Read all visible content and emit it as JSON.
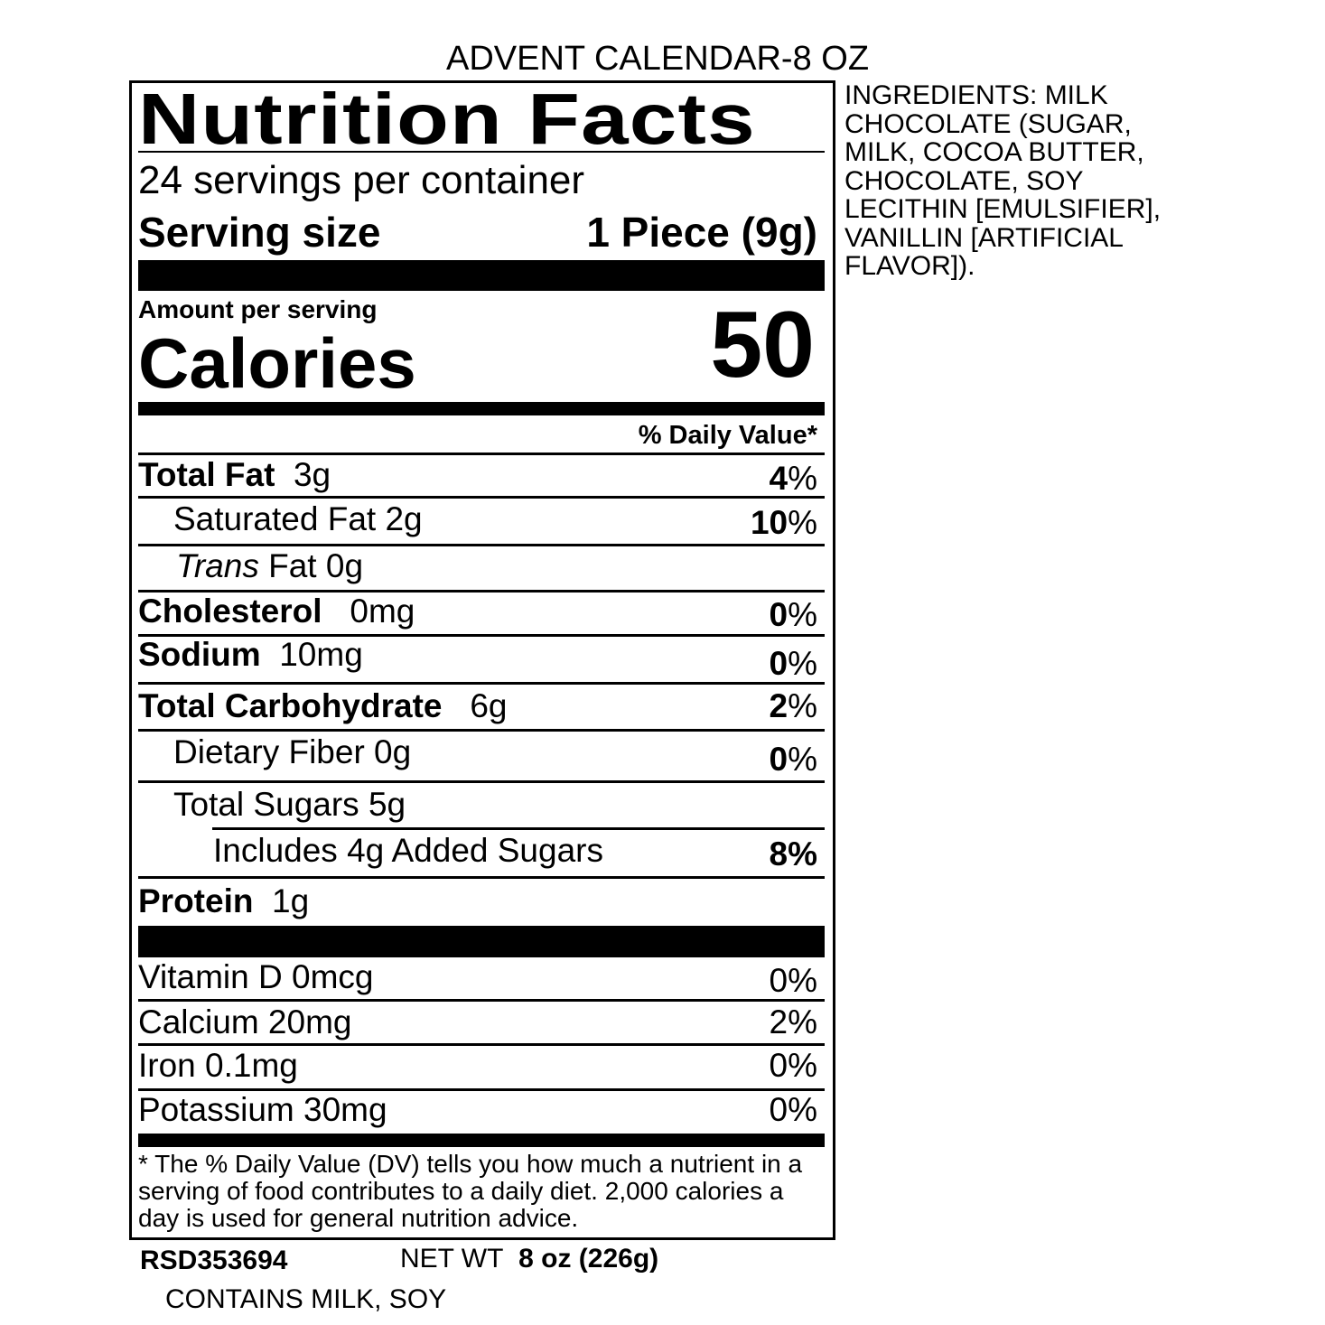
{
  "product_title": "ADVENT CALENDAR-8 OZ",
  "label": {
    "title": "Nutrition Facts",
    "servings_per_container": "24 servings per container",
    "serving_size_label": "Serving size",
    "serving_size_value": "1 Piece (9g)",
    "amount_per_serving": "Amount per serving",
    "calories_label": "Calories",
    "calories_value": "50",
    "daily_value_header": "% Daily Value*",
    "nutrients": [
      {
        "name": "Total Fat",
        "amount": "3g",
        "dv_num": "4",
        "dv_pct": "%"
      },
      {
        "name": "Saturated Fat 2g",
        "dv_num": "10",
        "dv_pct": "%"
      },
      {
        "name_italic": "Trans",
        "name": " Fat 0g"
      },
      {
        "name": "Cholesterol",
        "amount": "0mg",
        "dv_num": "0",
        "dv_pct": "%"
      },
      {
        "name": "Sodium",
        "amount": "10mg",
        "dv_num": "0",
        "dv_pct": "%"
      },
      {
        "name": "Total Carbohydrate",
        "amount": "6g",
        "dv_num": "2",
        "dv_pct": "%"
      },
      {
        "name": "Dietary Fiber 0g",
        "dv_num": "0",
        "dv_pct": "%"
      },
      {
        "name": "Total Sugars 5g"
      },
      {
        "name": "Includes 4g Added Sugars",
        "dv": "8%"
      },
      {
        "name": "Protein",
        "amount": "1g"
      }
    ],
    "vitamins": [
      {
        "name": "Vitamin D 0mcg",
        "dv": "0%"
      },
      {
        "name": "Calcium 20mg",
        "dv": "2%"
      },
      {
        "name": "Iron 0.1mg",
        "dv": "0%"
      },
      {
        "name": "Potassium 30mg",
        "dv": "0%"
      }
    ],
    "footnote": "* The % Daily Value (DV) tells you how much a nutrient in a serving of food contributes to a daily diet.  2,000 calories a day is used for general nutrition advice."
  },
  "ingredients": "INGREDIENTS: MILK CHOCOLATE (SUGAR, MILK, COCOA BUTTER, CHOCOLATE, SOY LECITHIN [EMULSIFIER], VANILLIN [ARTIFICIAL FLAVOR]).",
  "code": "RSD353694",
  "net_wt_label": "NET WT",
  "net_wt_value": "8 oz (226g)",
  "allergens": "CONTAINS MILK, SOY"
}
